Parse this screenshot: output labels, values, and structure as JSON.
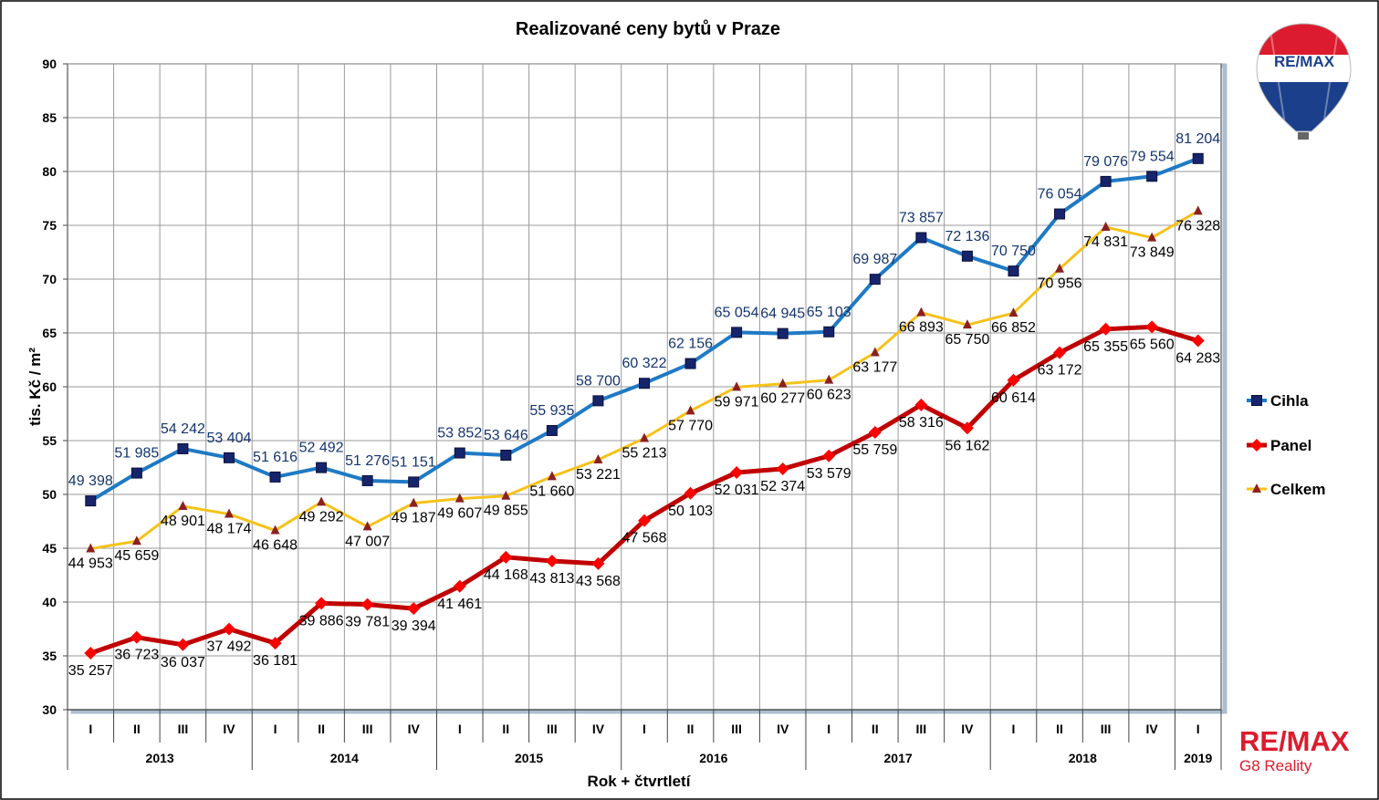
{
  "colors": {
    "cihla": "#1f7ac4",
    "cihla_marker": "#16246b",
    "panel": "#c00000",
    "panel_marker": "#ff0000",
    "celkem": "#f5c21a",
    "celkem_marker": "#8b2020",
    "cihla_label": "#14346e"
  },
  "chart_data": {
    "type": "line",
    "title": "Realizované ceny bytů v Praze",
    "xlabel": "Rok + čtvrtletí",
    "ylabel": "tis. Kč / m²",
    "ylim": [
      30,
      90
    ],
    "yticks": [
      "30",
      "35",
      "40",
      "45",
      "50",
      "55",
      "60",
      "65",
      "70",
      "75",
      "80",
      "85",
      "90"
    ],
    "grid": true,
    "legend_position": "right",
    "categories": [
      "I",
      "II",
      "III",
      "IV",
      "I",
      "II",
      "III",
      "IV",
      "I",
      "II",
      "III",
      "IV",
      "I",
      "II",
      "III",
      "IV",
      "I",
      "II",
      "III",
      "IV",
      "I",
      "II",
      "III",
      "IV",
      "I"
    ],
    "years": [
      {
        "label": "2013",
        "count": 4
      },
      {
        "label": "2014",
        "count": 4
      },
      {
        "label": "2015",
        "count": 4
      },
      {
        "label": "2016",
        "count": 4
      },
      {
        "label": "2017",
        "count": 4
      },
      {
        "label": "2018",
        "count": 4
      },
      {
        "label": "2019",
        "count": 1
      }
    ],
    "series": [
      {
        "name": "Cihla",
        "values": [
          49.398,
          51.985,
          54.242,
          53.404,
          51.616,
          52.492,
          51.276,
          51.151,
          53.852,
          53.646,
          55.935,
          58.7,
          60.322,
          62.156,
          65.054,
          64.945,
          65.103,
          69.987,
          73.857,
          72.136,
          70.75,
          76.054,
          79.076,
          79.554,
          81.204
        ],
        "labels": [
          "49 398",
          "51 985",
          "54 242",
          "53 404",
          "51 616",
          "52 492",
          "51 276",
          "51 151",
          "53 852",
          "53 646",
          "55 935",
          "58 700",
          "60 322",
          "62 156",
          "65 054",
          "64 945",
          "65 103",
          "69 987",
          "73 857",
          "72 136",
          "70 750",
          "76 054",
          "79 076",
          "79 554",
          "81 204"
        ]
      },
      {
        "name": "Panel",
        "values": [
          35.257,
          36.723,
          36.037,
          37.492,
          36.181,
          39.886,
          39.781,
          39.394,
          41.461,
          44.168,
          43.813,
          43.568,
          47.568,
          50.103,
          52.031,
          52.374,
          53.579,
          55.759,
          58.316,
          56.162,
          60.614,
          63.172,
          65.355,
          65.56,
          64.283
        ],
        "labels": [
          "35 257",
          "36 723",
          "36 037",
          "37 492",
          "36 181",
          "39 886",
          "39 781",
          "39 394",
          "41 461",
          "44 168",
          "43 813",
          "43 568",
          "47 568",
          "50 103",
          "52 031",
          "52 374",
          "53 579",
          "55 759",
          "58 316",
          "56 162",
          "60 614",
          "63 172",
          "65 355",
          "65 560",
          "64 283"
        ]
      },
      {
        "name": "Celkem",
        "values": [
          44.953,
          45.659,
          48.901,
          48.174,
          46.648,
          49.292,
          47.007,
          49.187,
          49.607,
          49.855,
          51.66,
          53.221,
          55.213,
          57.77,
          59.971,
          60.277,
          60.623,
          63.177,
          66.893,
          65.75,
          66.852,
          70.956,
          74.831,
          73.849,
          76.328
        ],
        "labels": [
          "44 953",
          "45 659",
          "48 901",
          "48 174",
          "46 648",
          "49 292",
          "47 007",
          "49 187",
          "49 607",
          "49 855",
          "51 660",
          "53 221",
          "55 213",
          "57 770",
          "59 971",
          "60 277",
          "60 623",
          "63 177",
          "66 893",
          "65 750",
          "66 852",
          "70 956",
          "74 831",
          "73 849",
          "76 328"
        ]
      }
    ]
  },
  "logo_top": {
    "text": "RE/MAX"
  },
  "logo_bottom": {
    "brand": "RE/MAX",
    "office": "G8 Reality"
  }
}
